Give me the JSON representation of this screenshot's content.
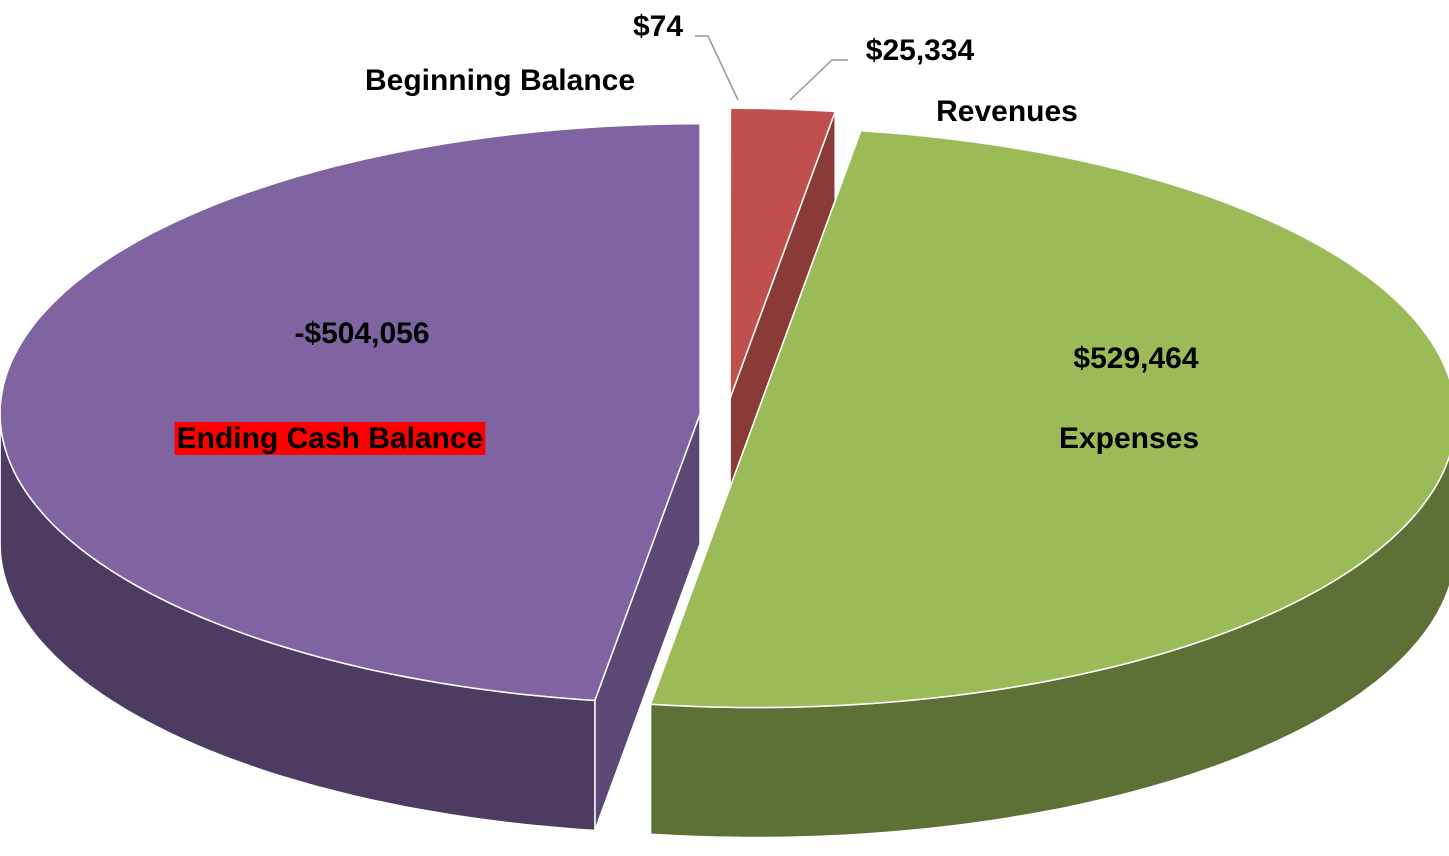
{
  "chart_data": {
    "type": "pie",
    "categories": [
      "Beginning Balance",
      "Revenues",
      "Expenses",
      "Ending Cash Balance"
    ],
    "values": [
      74,
      25334,
      529464,
      -504056
    ],
    "value_labels": [
      "$74",
      "$25,334",
      "$529,464",
      "-$504,056"
    ],
    "colors": [
      "#4f81bd",
      "#c0504d",
      "#9bbb59",
      "#8064a2"
    ],
    "highlight": {
      "index": 3,
      "color": "#ff0000"
    }
  }
}
